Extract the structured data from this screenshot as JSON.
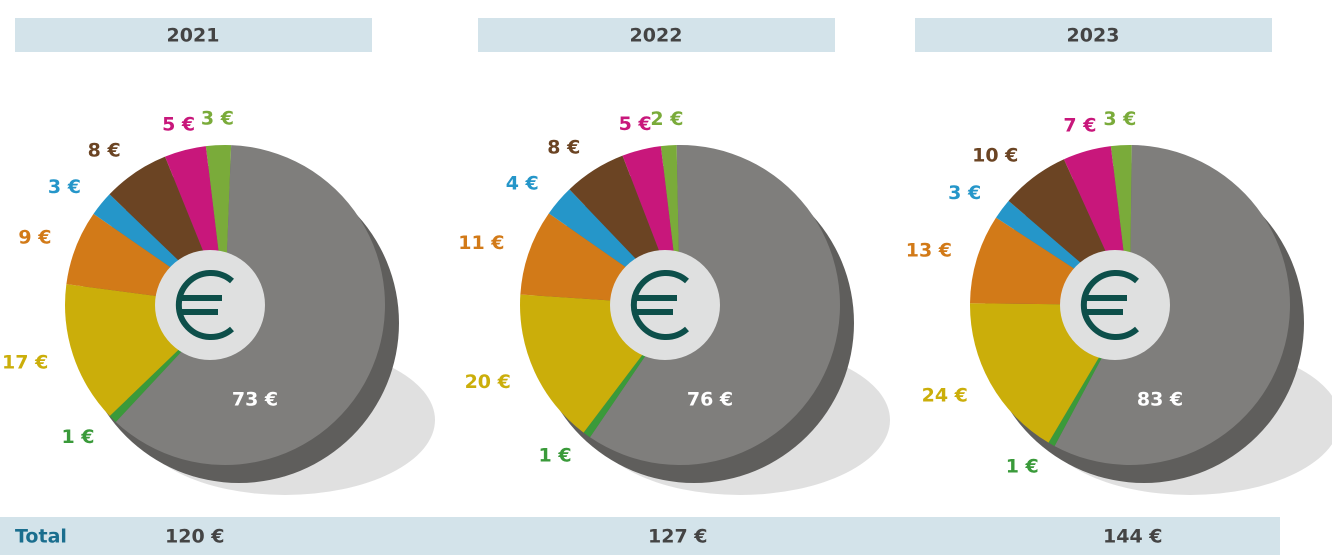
{
  "chart_data": [
    {
      "type": "pie",
      "title": "2021",
      "values": [
        3,
        73,
        1,
        17,
        9,
        3,
        8,
        5
      ],
      "value_labels": [
        "3 €",
        "73 €",
        "1 €",
        "17 €",
        "9 €",
        "3 €",
        "8 €",
        "5 €"
      ],
      "colors": [
        "#7aab3a",
        "#7f7e7c",
        "#3a9a3a",
        "#cbae0a",
        "#d27a18",
        "#2596c9",
        "#6b4423",
        "#c8177b"
      ],
      "total": 120,
      "total_label": "120 €"
    },
    {
      "type": "pie",
      "title": "2022",
      "values": [
        2,
        76,
        1,
        20,
        11,
        4,
        8,
        5
      ],
      "value_labels": [
        "2 €",
        "76 €",
        "1 €",
        "20 €",
        "11 €",
        "4 €",
        "8 €",
        "5 €"
      ],
      "colors": [
        "#7aab3a",
        "#7f7e7c",
        "#3a9a3a",
        "#cbae0a",
        "#d27a18",
        "#2596c9",
        "#6b4423",
        "#c8177b"
      ],
      "total": 127,
      "total_label": "127 €"
    },
    {
      "type": "pie",
      "title": "2023",
      "values": [
        3,
        83,
        1,
        24,
        13,
        3,
        10,
        7
      ],
      "value_labels": [
        "3 €",
        "83 €",
        "1 €",
        "24 €",
        "13 €",
        "3 €",
        "10 €",
        "7 €"
      ],
      "colors": [
        "#7aab3a",
        "#7f7e7c",
        "#3a9a3a",
        "#cbae0a",
        "#d27a18",
        "#2596c9",
        "#6b4423",
        "#c8177b"
      ],
      "total": 144,
      "total_label": "144 €"
    }
  ],
  "footer": {
    "label": "Total"
  }
}
